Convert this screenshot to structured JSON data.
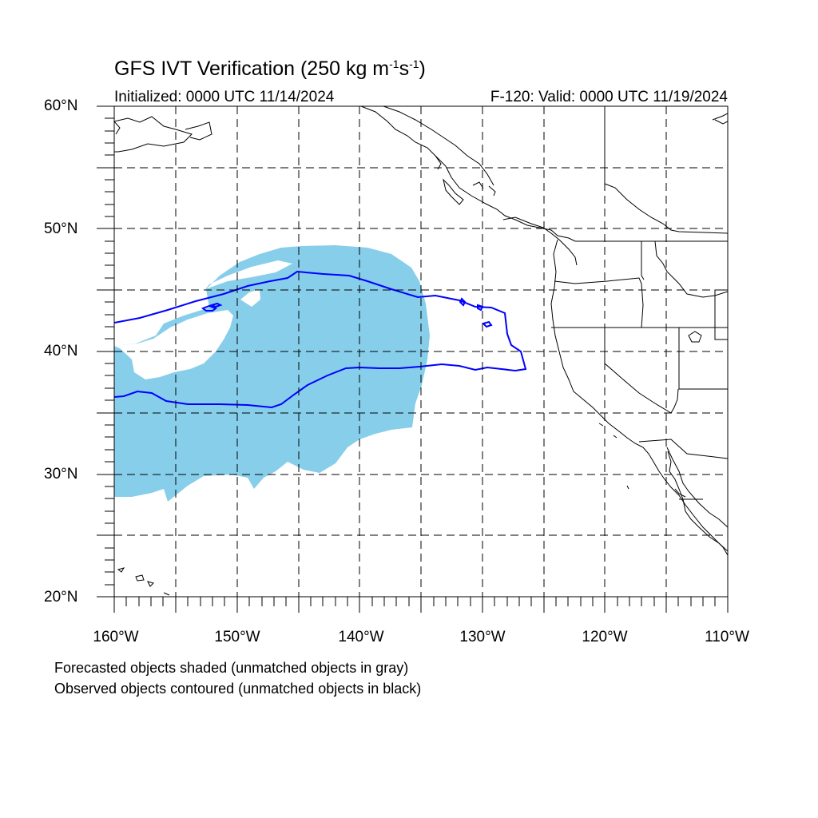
{
  "header": {
    "title_main": "GFS IVT Verification (250 kg m",
    "title_exp1": "-1",
    "title_mid": "s",
    "title_exp2": "-1",
    "title_end": ")",
    "initialized": "Initialized: 0000 UTC 11/14/2024",
    "valid": "F-120: Valid: 0000 UTC 11/19/2024"
  },
  "map": {
    "lat_range": [
      20,
      60
    ],
    "lon_range": [
      -160,
      -110
    ],
    "lat_labels": [
      "60°N",
      "50°N",
      "40°N",
      "30°N",
      "20°N"
    ],
    "lon_labels": [
      "160°W",
      "150°W",
      "140°W",
      "130°W",
      "120°W",
      "110°W"
    ],
    "forecast_fill_color": "#87ceeb",
    "observed_contour_color": "#0000ff",
    "coastline_color": "#000000",
    "grid": "dashed"
  },
  "legend": {
    "line1": "Forecasted objects shaded (unmatched objects in gray)",
    "line2": "Observed objects contoured (unmatched objects in black)"
  }
}
